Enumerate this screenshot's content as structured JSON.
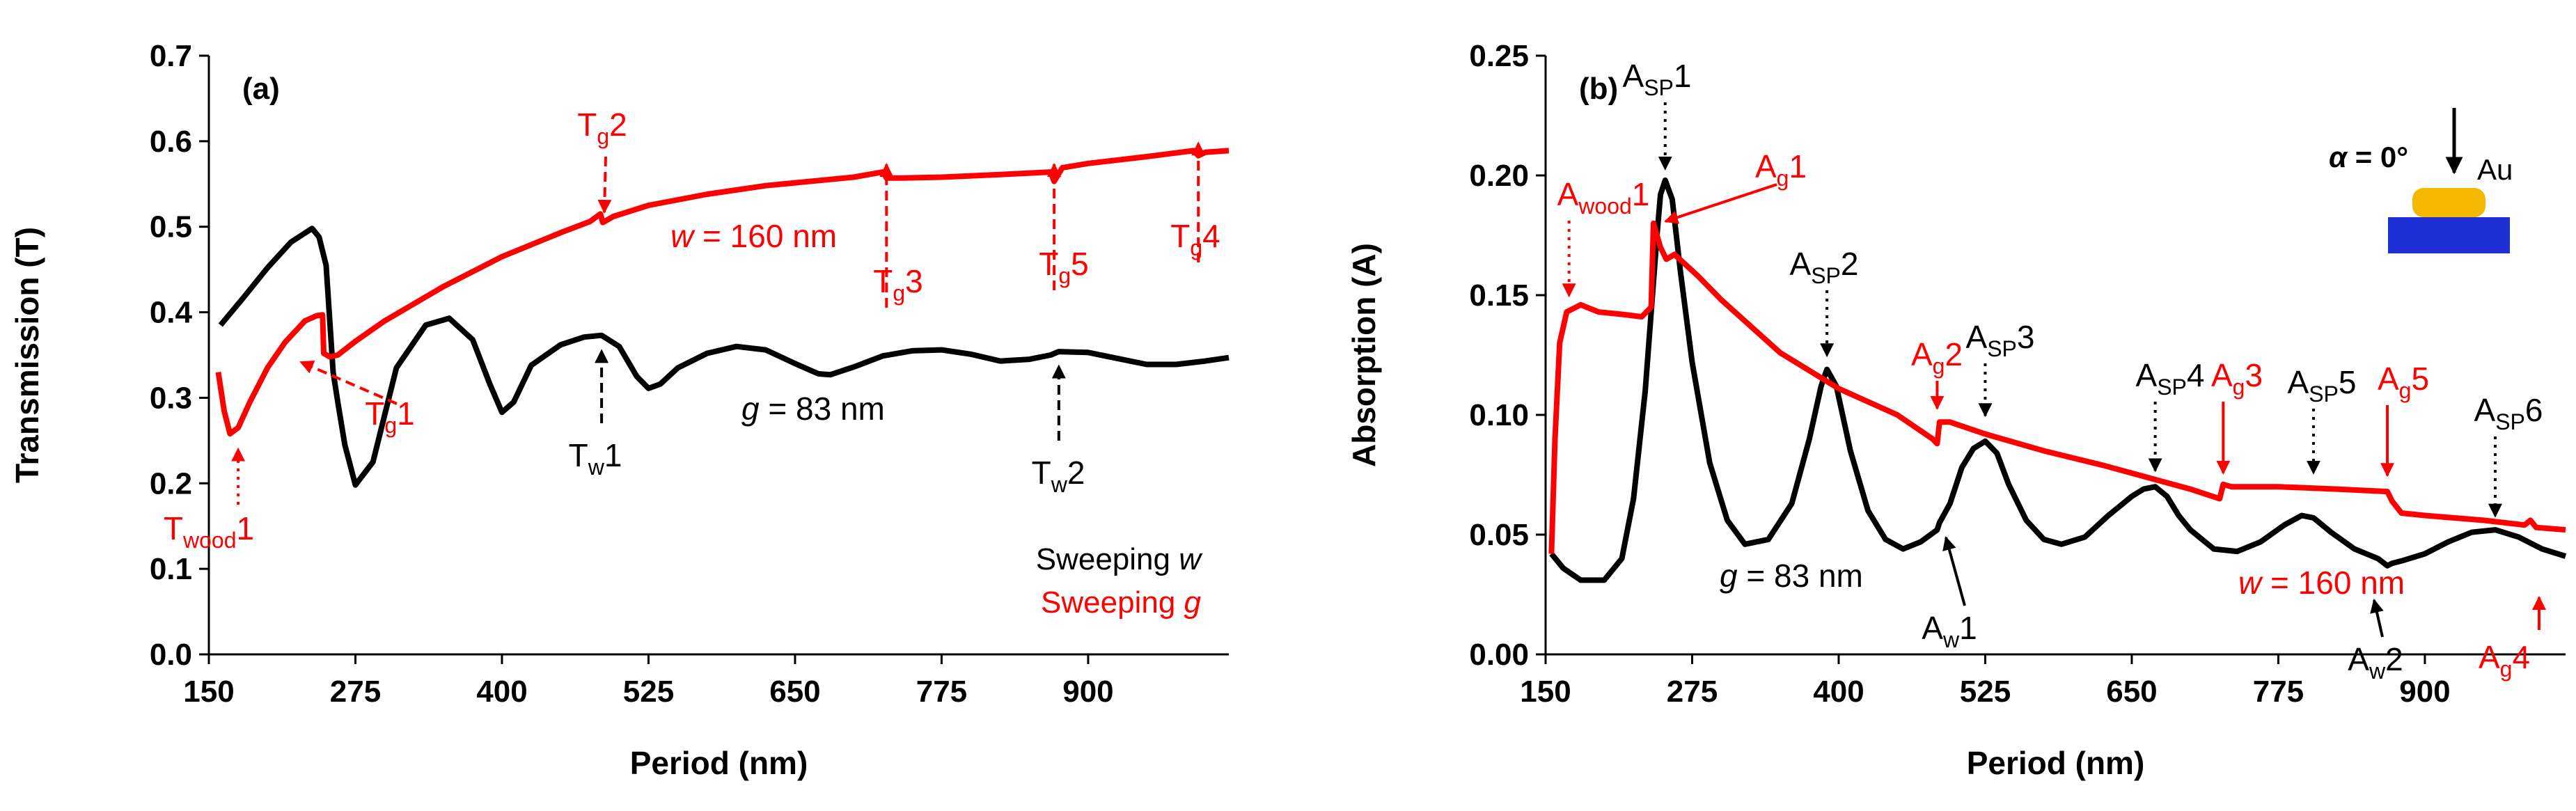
{
  "colors": {
    "red": "#ff0000",
    "black": "#000000",
    "gold": "#f5b800",
    "blue": "#1f2fd6"
  },
  "chart_data": [
    {
      "type": "line",
      "panel": "(a)",
      "xlabel": "Period (nm)",
      "ylabel": "Transmission (T)",
      "xlim": [
        150,
        1020
      ],
      "ylim": [
        0.0,
        0.7
      ],
      "xticks": [
        "150",
        "275",
        "400",
        "525",
        "650",
        "775",
        "900"
      ],
      "yticks": [
        "0.0",
        "0.1",
        "0.2",
        "0.3",
        "0.4",
        "0.5",
        "0.6",
        "0.7"
      ],
      "legend": {
        "items": [
          {
            "label": "Sweeping w",
            "text": "Sweeping",
            "var": "w",
            "color": "#000000"
          },
          {
            "label": "Sweeping g",
            "text": "Sweeping",
            "var": "g",
            "color": "#ff0000"
          }
        ],
        "position": "bottom-right"
      },
      "series": [
        {
          "name": "g = 83 nm",
          "color": "#000000",
          "x": [
            160,
            180,
            200,
            220,
            238,
            244,
            250,
            256,
            260,
            266,
            275,
            290,
            310,
            335,
            355,
            375,
            390,
            400,
            410,
            425,
            450,
            470,
            485,
            500,
            515,
            525,
            535,
            550,
            575,
            600,
            625,
            650,
            670,
            680,
            700,
            725,
            750,
            775,
            800,
            825,
            850,
            868,
            875,
            900,
            925,
            950,
            975,
            1000,
            1020
          ],
          "y": [
            0.385,
            0.418,
            0.452,
            0.482,
            0.498,
            0.488,
            0.455,
            0.33,
            0.295,
            0.245,
            0.198,
            0.225,
            0.335,
            0.385,
            0.393,
            0.368,
            0.315,
            0.283,
            0.295,
            0.338,
            0.362,
            0.371,
            0.373,
            0.36,
            0.325,
            0.311,
            0.316,
            0.335,
            0.352,
            0.36,
            0.356,
            0.34,
            0.328,
            0.327,
            0.336,
            0.349,
            0.355,
            0.356,
            0.351,
            0.343,
            0.345,
            0.35,
            0.354,
            0.353,
            0.346,
            0.339,
            0.339,
            0.343,
            0.347
          ]
        },
        {
          "name": "w = 160 nm",
          "color": "#ff0000",
          "x": [
            158,
            163,
            168,
            175,
            185,
            200,
            215,
            232,
            242,
            247,
            248,
            253,
            260,
            275,
            300,
            350,
            400,
            450,
            475,
            484,
            486,
            495,
            525,
            575,
            625,
            700,
            725,
            728,
            740,
            775,
            825,
            868,
            871,
            878,
            900,
            950,
            990,
            994,
            1000,
            1020
          ],
          "y": [
            0.33,
            0.285,
            0.258,
            0.265,
            0.295,
            0.335,
            0.365,
            0.39,
            0.396,
            0.397,
            0.352,
            0.348,
            0.35,
            0.366,
            0.39,
            0.43,
            0.465,
            0.493,
            0.506,
            0.515,
            0.505,
            0.512,
            0.525,
            0.538,
            0.548,
            0.558,
            0.564,
            0.557,
            0.557,
            0.558,
            0.561,
            0.564,
            0.553,
            0.569,
            0.574,
            0.582,
            0.589,
            0.583,
            0.587,
            0.589
          ]
        }
      ],
      "annotations": [
        {
          "id": "T_wood1",
          "base": "T",
          "sub": "wood",
          "suffix": "1",
          "color": "#ff0000",
          "x": 175,
          "y": 0.255
        },
        {
          "id": "T_g1",
          "base": "T",
          "sub": "g",
          "suffix": "1",
          "color": "#ff0000",
          "x": 248,
          "y": 0.33
        },
        {
          "id": "T_g2",
          "base": "T",
          "sub": "g",
          "suffix": "2",
          "color": "#ff0000",
          "x": 485,
          "y": 0.51
        },
        {
          "id": "T_g3",
          "base": "T",
          "sub": "g",
          "suffix": "3",
          "color": "#ff0000",
          "x": 728,
          "y": 0.56
        },
        {
          "id": "T_g5",
          "base": "T",
          "sub": "g",
          "suffix": "5",
          "color": "#ff0000",
          "x": 871,
          "y": 0.56
        },
        {
          "id": "T_g4",
          "base": "T",
          "sub": "g",
          "suffix": "4",
          "color": "#ff0000",
          "x": 994,
          "y": 0.585
        },
        {
          "id": "T_w1",
          "base": "T",
          "sub": "w",
          "suffix": "1",
          "color": "#000000",
          "x": 485,
          "y": 0.37
        },
        {
          "id": "T_w2",
          "base": "T",
          "sub": "w",
          "suffix": "2",
          "color": "#000000",
          "x": 875,
          "y": 0.352
        }
      ],
      "labels": [
        {
          "id": "w160",
          "var": "w",
          "rest": " = 160 nm",
          "color": "#ff0000"
        },
        {
          "id": "g83",
          "var": "g",
          "rest": " = 83 nm",
          "color": "#000000"
        }
      ]
    },
    {
      "type": "line",
      "panel": "(b)",
      "xlabel": "Period (nm)",
      "ylabel": "Absorption (A)",
      "xlim": [
        150,
        1020
      ],
      "ylim": [
        0.0,
        0.25
      ],
      "xticks": [
        "150",
        "275",
        "400",
        "525",
        "650",
        "775",
        "900"
      ],
      "yticks": [
        "0.00",
        "0.05",
        "0.10",
        "0.15",
        "0.20",
        "0.25"
      ],
      "series": [
        {
          "name": "g = 83 nm",
          "color": "#000000",
          "x": [
            155,
            165,
            180,
            200,
            215,
            225,
            235,
            245,
            248,
            252,
            258,
            265,
            275,
            290,
            305,
            320,
            340,
            360,
            375,
            385,
            390,
            398,
            410,
            425,
            440,
            455,
            470,
            484,
            486,
            495,
            505,
            515,
            525,
            535,
            545,
            560,
            575,
            590,
            610,
            630,
            650,
            660,
            670,
            680,
            690,
            700,
            720,
            740,
            760,
            780,
            795,
            805,
            820,
            840,
            860,
            868,
            872,
            880,
            900,
            920,
            940,
            960,
            980,
            1000,
            1020
          ],
          "y": [
            0.042,
            0.036,
            0.031,
            0.031,
            0.04,
            0.065,
            0.11,
            0.175,
            0.192,
            0.198,
            0.19,
            0.16,
            0.122,
            0.08,
            0.056,
            0.046,
            0.048,
            0.063,
            0.09,
            0.112,
            0.119,
            0.112,
            0.085,
            0.06,
            0.048,
            0.044,
            0.047,
            0.052,
            0.055,
            0.063,
            0.078,
            0.086,
            0.089,
            0.084,
            0.071,
            0.056,
            0.048,
            0.046,
            0.049,
            0.058,
            0.066,
            0.069,
            0.07,
            0.066,
            0.058,
            0.052,
            0.044,
            0.043,
            0.047,
            0.054,
            0.058,
            0.057,
            0.051,
            0.044,
            0.04,
            0.037,
            0.038,
            0.039,
            0.042,
            0.047,
            0.051,
            0.052,
            0.049,
            0.044,
            0.041
          ]
        },
        {
          "name": "w = 160 nm",
          "color": "#ff0000",
          "x": [
            155,
            158,
            162,
            168,
            180,
            195,
            215,
            232,
            240,
            242,
            248,
            253,
            260,
            280,
            300,
            350,
            400,
            450,
            480,
            484,
            486,
            495,
            525,
            575,
            625,
            700,
            725,
            728,
            735,
            775,
            825,
            868,
            872,
            880,
            900,
            950,
            985,
            990,
            995,
            1020
          ],
          "y": [
            0.042,
            0.09,
            0.13,
            0.143,
            0.146,
            0.143,
            0.142,
            0.141,
            0.145,
            0.18,
            0.17,
            0.165,
            0.167,
            0.158,
            0.148,
            0.126,
            0.111,
            0.1,
            0.09,
            0.088,
            0.097,
            0.097,
            0.092,
            0.085,
            0.079,
            0.069,
            0.065,
            0.071,
            0.07,
            0.07,
            0.069,
            0.068,
            0.064,
            0.059,
            0.058,
            0.056,
            0.054,
            0.056,
            0.053,
            0.052
          ]
        }
      ],
      "annotations": [
        {
          "id": "A_SP1",
          "base": "A",
          "sub": "SP",
          "suffix": "1",
          "color": "#000000",
          "x": 252,
          "y": 0.198
        },
        {
          "id": "A_g1",
          "base": "A",
          "sub": "g",
          "suffix": "1",
          "color": "#ff0000",
          "x": 246,
          "y": 0.178
        },
        {
          "id": "A_wood1",
          "base": "A",
          "sub": "wood",
          "suffix": "1",
          "color": "#ff0000",
          "x": 170,
          "y": 0.145
        },
        {
          "id": "A_SP2",
          "base": "A",
          "sub": "SP",
          "suffix": "2",
          "color": "#000000",
          "x": 390,
          "y": 0.12
        },
        {
          "id": "A_g2",
          "base": "A",
          "sub": "g",
          "suffix": "2",
          "color": "#ff0000",
          "x": 484,
          "y": 0.098
        },
        {
          "id": "A_SP3",
          "base": "A",
          "sub": "SP",
          "suffix": "3",
          "color": "#000000",
          "x": 525,
          "y": 0.095
        },
        {
          "id": "A_SP4",
          "base": "A",
          "sub": "SP",
          "suffix": "4",
          "color": "#000000",
          "x": 670,
          "y": 0.072
        },
        {
          "id": "A_g3",
          "base": "A",
          "sub": "g",
          "suffix": "3",
          "color": "#ff0000",
          "x": 728,
          "y": 0.071
        },
        {
          "id": "A_SP5",
          "base": "A",
          "sub": "SP",
          "suffix": "5",
          "color": "#000000",
          "x": 805,
          "y": 0.071
        },
        {
          "id": "A_g5",
          "base": "A",
          "sub": "g",
          "suffix": "5",
          "color": "#ff0000",
          "x": 868,
          "y": 0.07
        },
        {
          "id": "A_SP6",
          "base": "A",
          "sub": "SP",
          "suffix": "6",
          "color": "#000000",
          "x": 960,
          "y": 0.053
        },
        {
          "id": "A_w1",
          "base": "A",
          "sub": "w",
          "suffix": "1",
          "color": "#000000",
          "x": 484,
          "y": 0.053
        },
        {
          "id": "A_w2",
          "base": "A",
          "sub": "w",
          "suffix": "2",
          "color": "#000000",
          "x": 868,
          "y": 0.038
        },
        {
          "id": "A_g4",
          "base": "A",
          "sub": "g",
          "suffix": "4",
          "color": "#ff0000",
          "x": 990,
          "y": 0.054
        }
      ],
      "labels": [
        {
          "id": "g83",
          "var": "g",
          "rest": " = 83 nm",
          "color": "#000000"
        },
        {
          "id": "w160",
          "var": "w",
          "rest": " = 160 nm",
          "color": "#ff0000"
        }
      ],
      "inset": {
        "label": "α = 0°",
        "material": "Au"
      }
    }
  ]
}
